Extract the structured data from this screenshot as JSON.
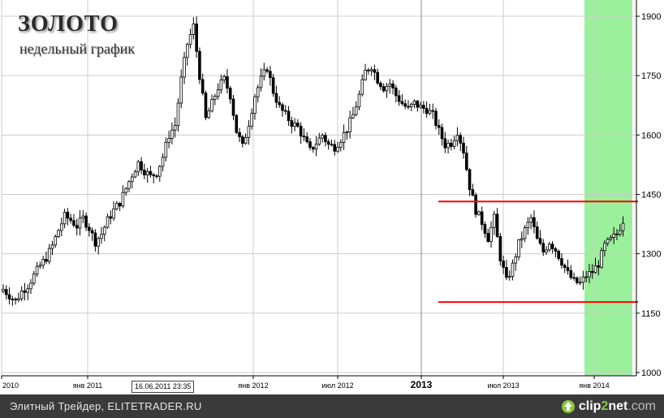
{
  "header": {
    "title": "ЗОЛОТО",
    "subtitle": "недельный график"
  },
  "footer": {
    "text": "Элитный Трейдер, ELITETRADER.RU",
    "logo": {
      "part1": "clip",
      "part2": "2",
      "part3": "net",
      "part4": ".com",
      "icon": "upload-arrow-icon"
    }
  },
  "crosshair": {
    "date_label": "16.06.2011 23:35"
  },
  "colors": {
    "candle": "#000000",
    "support_resistance": "#ff0000",
    "highlight": "#90ee90",
    "grid": "#cccccc",
    "footer_bg": "#3a3a3a"
  },
  "chart_data": {
    "type": "candlestick",
    "title": "ЗОЛОТО",
    "subtitle": "недельный график",
    "y_axis": {
      "ticks": [
        "1900",
        "1750",
        "1600",
        "1450",
        "1300",
        "1150",
        "1000"
      ],
      "ylim": [
        995,
        1925
      ],
      "position": "right"
    },
    "x_axis": {
      "ticks": [
        {
          "label": "2010",
          "bold": false
        },
        {
          "label": "янв 2011",
          "bold": false
        },
        {
          "label": "янв 2012",
          "bold": false
        },
        {
          "label": "июл 2012",
          "bold": false
        },
        {
          "label": "2013",
          "bold": true
        },
        {
          "label": "июл 2013",
          "bold": false
        },
        {
          "label": "янв 2014",
          "bold": false
        }
      ]
    },
    "grid": true,
    "horizontal_levels": [
      {
        "value": 1432,
        "label": "resistance"
      },
      {
        "value": 1178,
        "label": "support"
      }
    ],
    "highlight_zone": {
      "from_week": 191,
      "to_week": 205
    },
    "weekly_close_path": [
      [
        0,
        1210
      ],
      [
        2,
        1195
      ],
      [
        4,
        1180
      ],
      [
        6,
        1205
      ],
      [
        8,
        1220
      ],
      [
        10,
        1245
      ],
      [
        12,
        1270
      ],
      [
        14,
        1290
      ],
      [
        16,
        1320
      ],
      [
        18,
        1360
      ],
      [
        20,
        1395
      ],
      [
        22,
        1385
      ],
      [
        24,
        1370
      ],
      [
        26,
        1390
      ],
      [
        28,
        1365
      ],
      [
        30,
        1330
      ],
      [
        32,
        1350
      ],
      [
        34,
        1385
      ],
      [
        36,
        1410
      ],
      [
        38,
        1430
      ],
      [
        40,
        1465
      ],
      [
        42,
        1500
      ],
      [
        44,
        1530
      ],
      [
        46,
        1510
      ],
      [
        48,
        1495
      ],
      [
        50,
        1505
      ],
      [
        52,
        1545
      ],
      [
        54,
        1600
      ],
      [
        56,
        1625
      ],
      [
        58,
        1740
      ],
      [
        60,
        1830
      ],
      [
        62,
        1875
      ],
      [
        64,
        1750
      ],
      [
        66,
        1640
      ],
      [
        68,
        1680
      ],
      [
        70,
        1720
      ],
      [
        72,
        1740
      ],
      [
        74,
        1700
      ],
      [
        76,
        1610
      ],
      [
        78,
        1570
      ],
      [
        80,
        1630
      ],
      [
        82,
        1700
      ],
      [
        84,
        1740
      ],
      [
        86,
        1770
      ],
      [
        88,
        1710
      ],
      [
        90,
        1670
      ],
      [
        92,
        1650
      ],
      [
        94,
        1630
      ],
      [
        96,
        1620
      ],
      [
        98,
        1590
      ],
      [
        100,
        1560
      ],
      [
        102,
        1580
      ],
      [
        104,
        1600
      ],
      [
        106,
        1575
      ],
      [
        108,
        1570
      ],
      [
        110,
        1590
      ],
      [
        112,
        1615
      ],
      [
        114,
        1650
      ],
      [
        116,
        1700
      ],
      [
        118,
        1760
      ],
      [
        120,
        1775
      ],
      [
        122,
        1740
      ],
      [
        124,
        1720
      ],
      [
        126,
        1730
      ],
      [
        128,
        1700
      ],
      [
        130,
        1680
      ],
      [
        132,
        1665
      ],
      [
        134,
        1680
      ],
      [
        136,
        1670
      ],
      [
        138,
        1665
      ],
      [
        140,
        1650
      ],
      [
        142,
        1610
      ],
      [
        144,
        1575
      ],
      [
        146,
        1580
      ],
      [
        148,
        1610
      ],
      [
        150,
        1560
      ],
      [
        152,
        1470
      ],
      [
        154,
        1410
      ],
      [
        156,
        1380
      ],
      [
        158,
        1340
      ],
      [
        160,
        1390
      ],
      [
        162,
        1290
      ],
      [
        164,
        1230
      ],
      [
        166,
        1270
      ],
      [
        168,
        1325
      ],
      [
        170,
        1360
      ],
      [
        172,
        1390
      ],
      [
        174,
        1335
      ],
      [
        176,
        1305
      ],
      [
        178,
        1330
      ],
      [
        180,
        1310
      ],
      [
        182,
        1280
      ],
      [
        184,
        1250
      ],
      [
        186,
        1230
      ],
      [
        188,
        1225
      ],
      [
        190,
        1245
      ],
      [
        192,
        1255
      ],
      [
        194,
        1275
      ],
      [
        196,
        1320
      ],
      [
        198,
        1335
      ],
      [
        200,
        1350
      ],
      [
        202,
        1385
      ]
    ]
  }
}
